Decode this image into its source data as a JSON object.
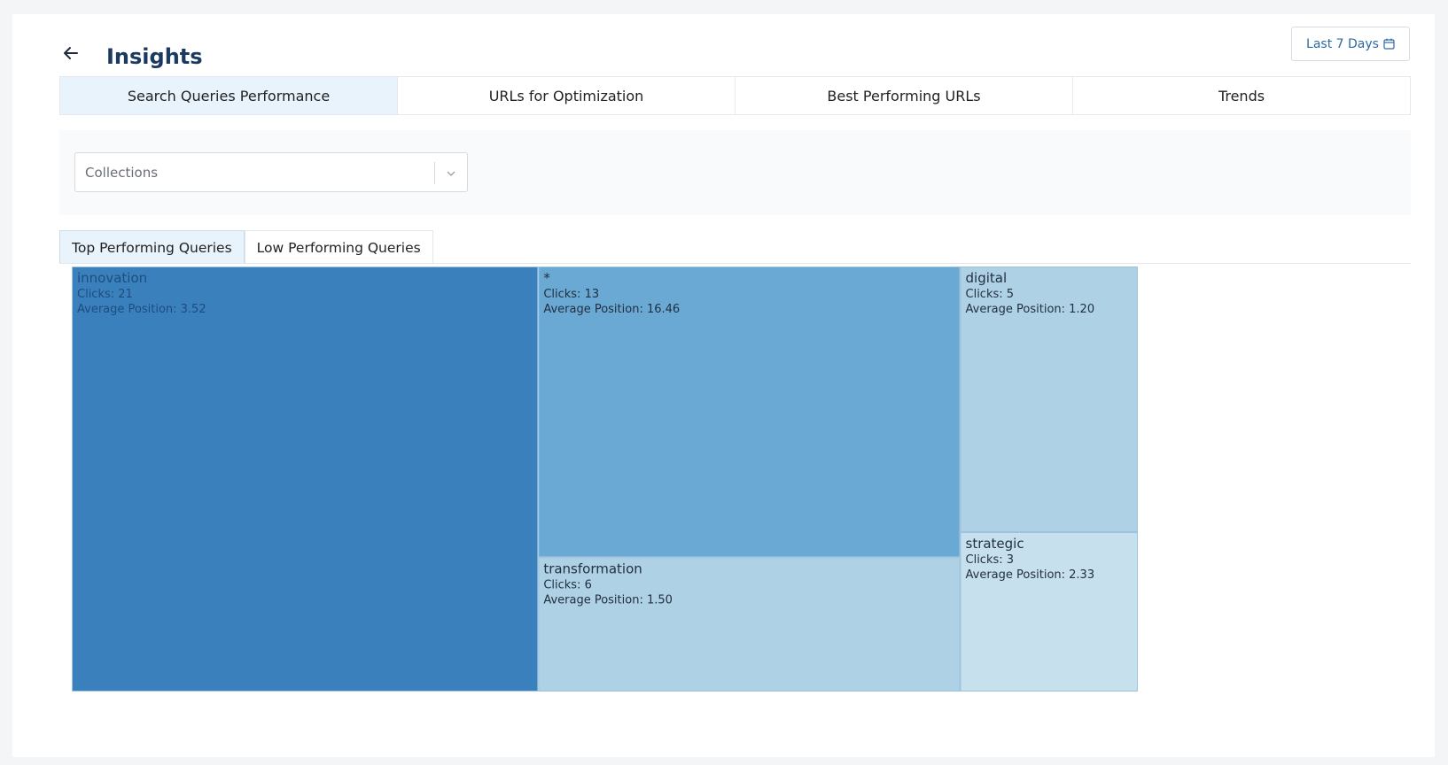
{
  "header": {
    "title": "Insights",
    "back_icon": "arrow-left-icon",
    "date_range_label": "Last 7 Days",
    "date_icon": "calendar-icon"
  },
  "tabs": [
    {
      "label": "Search Queries Performance",
      "active": true
    },
    {
      "label": "URLs for Optimization",
      "active": false
    },
    {
      "label": "Best Performing URLs",
      "active": false
    },
    {
      "label": "Trends",
      "active": false
    }
  ],
  "filter": {
    "collections_placeholder": "Collections",
    "chevron_icon": "chevron-down-icon"
  },
  "subtabs": [
    {
      "label": "Top Performing Queries",
      "active": true
    },
    {
      "label": "Low Performing Queries",
      "active": false
    }
  ],
  "colors": {
    "innovation": "#3a80bd",
    "star": "#6aa9d4",
    "light": "#aed1e6",
    "lightest": "#c7e0ee"
  },
  "chart_data": {
    "type": "treemap",
    "metric_label": "Clicks",
    "secondary_label": "Average Position",
    "items": [
      {
        "name": "innovation",
        "clicks": 21,
        "avg_position": "3.52",
        "clicks_text": "Clicks: 21",
        "position_text": "Average Position: 3.52"
      },
      {
        "name": "*",
        "clicks": 13,
        "avg_position": "16.46",
        "clicks_text": "Clicks: 13",
        "position_text": "Average Position: 16.46"
      },
      {
        "name": "transformation",
        "clicks": 6,
        "avg_position": "1.50",
        "clicks_text": "Clicks: 6",
        "position_text": "Average Position: 1.50"
      },
      {
        "name": "digital",
        "clicks": 5,
        "avg_position": "1.20",
        "clicks_text": "Clicks: 5",
        "position_text": "Average Position: 1.20"
      },
      {
        "name": "strategic",
        "clicks": 3,
        "avg_position": "2.33",
        "clicks_text": "Clicks: 3",
        "position_text": "Average Position: 2.33"
      }
    ]
  }
}
